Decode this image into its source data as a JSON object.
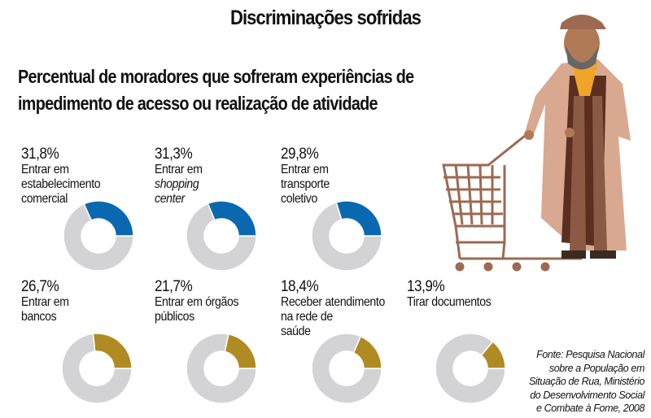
{
  "title": "Discriminações sofridas",
  "subtitle_line1": "Percentual de moradores que sofreram experiências de",
  "subtitle_line2": "impedimento de acesso ou realização de atividade",
  "source": [
    "Fonte: Pesquisa Nacional",
    "sobre a População em",
    "Situação de Rua, Ministério",
    "do Desenvolvimento Social",
    "e Combate à Fome, 2008"
  ],
  "colors": {
    "row1": "#0a68b0",
    "row2": "#b08a22",
    "remainder": "#d3d3d5"
  },
  "chart_data": {
    "type": "pie",
    "variant": "donut",
    "items": [
      {
        "pct_label": "31,8%",
        "value": 31.8,
        "label_lines": [
          "Entrar em",
          "estabelecimento",
          "comercial"
        ]
      },
      {
        "pct_label": "31,3%",
        "value": 31.3,
        "label_lines": [
          "Entrar em",
          "shopping",
          "center"
        ],
        "italic_lines": [
          1,
          2
        ]
      },
      {
        "pct_label": "29,8%",
        "value": 29.8,
        "label_lines": [
          "Entrar em",
          "transporte",
          "coletivo"
        ]
      },
      {
        "pct_label": "26,7%",
        "value": 26.7,
        "label_lines": [
          "Entrar em",
          "bancos"
        ]
      },
      {
        "pct_label": "21,7%",
        "value": 21.7,
        "label_lines": [
          "Entrar em órgãos",
          "públicos"
        ]
      },
      {
        "pct_label": "18,4%",
        "value": 18.4,
        "label_lines": [
          "Receber atendimento",
          "na rede de",
          "saúde"
        ]
      },
      {
        "pct_label": "13,9%",
        "value": 13.9,
        "label_lines": [
          "Tirar documentos"
        ]
      }
    ]
  },
  "illustration": "homeless-man-pushing-shopping-cart"
}
